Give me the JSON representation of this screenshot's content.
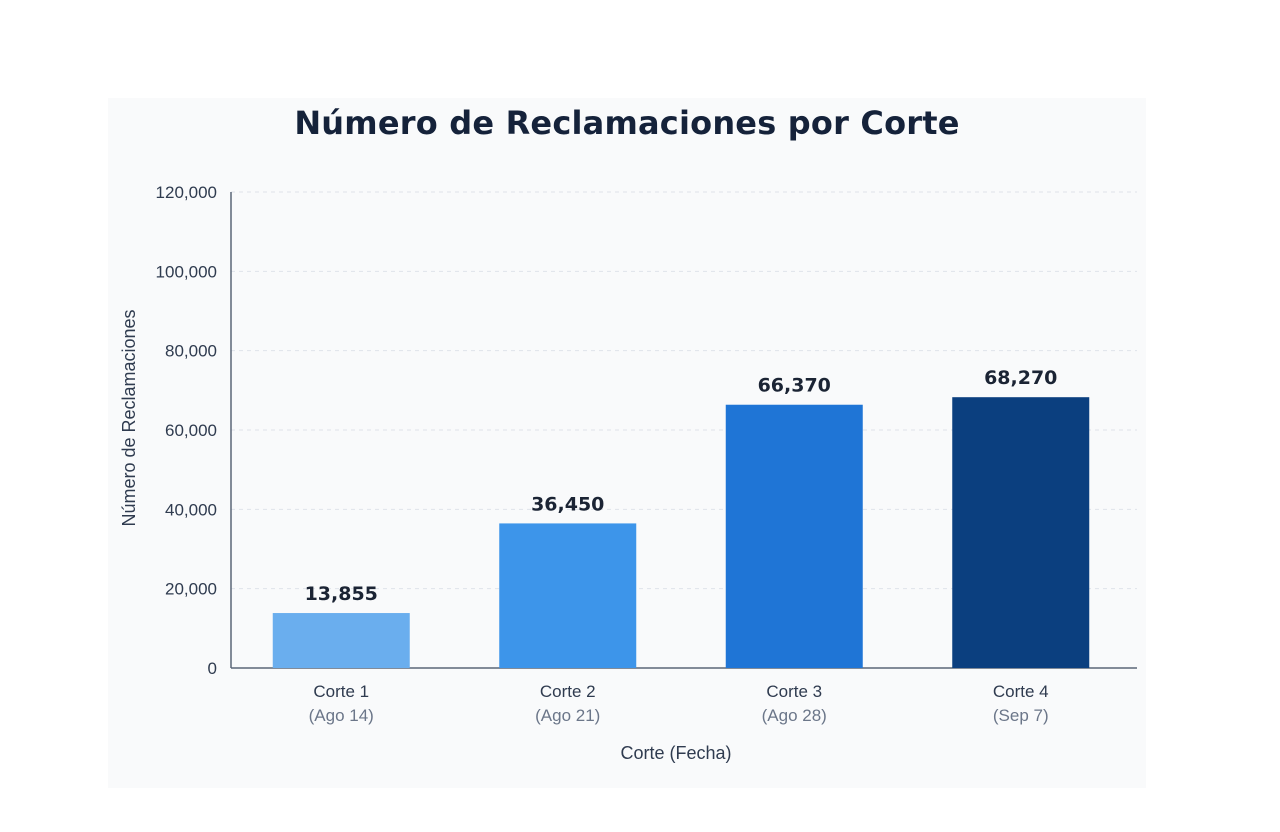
{
  "chart_data": {
    "type": "bar",
    "title": "Número de Reclamaciones por Corte",
    "xlabel": "Corte (Fecha)",
    "ylabel": "Número de Reclamaciones",
    "categories": [
      "Corte 1",
      "Corte 2",
      "Corte 3",
      "Corte 4"
    ],
    "category_dates": [
      "(Ago 14)",
      "(Ago 21)",
      "(Ago 28)",
      "(Sep 7)"
    ],
    "values": [
      13855,
      36450,
      66370,
      68270
    ],
    "value_labels": [
      "13,855",
      "36,450",
      "66,370",
      "68,270"
    ],
    "bar_colors": [
      "#6aaeee",
      "#3d95ea",
      "#1f75d6",
      "#0b3f7f"
    ],
    "ylim": [
      0,
      120000
    ],
    "yticks": [
      0,
      20000,
      40000,
      60000,
      80000,
      100000,
      120000
    ],
    "ytick_labels": [
      "0",
      "20,000",
      "40,000",
      "60,000",
      "80,000",
      "100,000",
      "120,000"
    ],
    "grid": true,
    "legend": "none"
  }
}
